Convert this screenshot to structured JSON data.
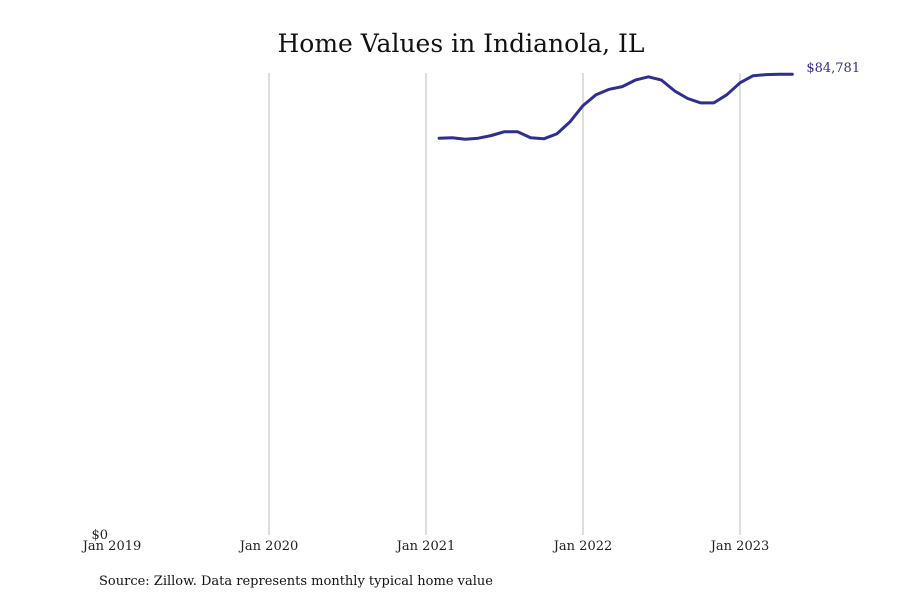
{
  "chart_data": {
    "type": "line",
    "title": "Home Values in Indianola, IL",
    "xlabel": "",
    "ylabel": "",
    "x_ticks": [
      "Jan 2019",
      "Jan 2020",
      "Jan 2021",
      "Jan 2022",
      "Jan 2023"
    ],
    "y_ticks": [
      "$0"
    ],
    "ylim": [
      0,
      85000
    ],
    "grid": "vertical",
    "end_label": "$84,781",
    "series": [
      {
        "color": "#2e2f8f",
        "x": [
          "2021-02",
          "2021-03",
          "2021-04",
          "2021-05",
          "2021-06",
          "2021-07",
          "2021-08",
          "2021-09",
          "2021-10",
          "2021-11",
          "2021-12",
          "2022-01",
          "2022-02",
          "2022-03",
          "2022-04",
          "2022-05",
          "2022-06",
          "2022-07",
          "2022-08",
          "2022-09",
          "2022-10",
          "2022-11",
          "2022-12",
          "2023-01",
          "2023-02",
          "2023-03",
          "2023-04",
          "2023-05"
        ],
        "values": [
          73000,
          73100,
          72800,
          73000,
          73500,
          74200,
          74200,
          73100,
          72900,
          73800,
          76000,
          79000,
          81000,
          82000,
          82500,
          83700,
          84300,
          83700,
          81700,
          80300,
          79500,
          79500,
          81000,
          83200,
          84500,
          84700,
          84781,
          84781
        ]
      }
    ]
  },
  "source": "Source: Zillow. Data represents monthly typical home value"
}
